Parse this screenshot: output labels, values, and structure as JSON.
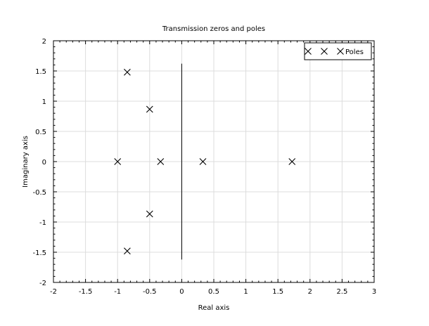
{
  "chart_data": {
    "type": "scatter",
    "title": "Transmission zeros and poles",
    "xlabel": "Real axis",
    "ylabel": "Imaginary axis",
    "xlim": [
      -2,
      3
    ],
    "ylim": [
      -2,
      2
    ],
    "xticks": [
      -2,
      -1.5,
      -1,
      -0.5,
      0,
      0.5,
      1,
      1.5,
      2,
      2.5,
      3
    ],
    "yticks": [
      -2,
      -1.5,
      -1,
      -0.5,
      0,
      0.5,
      1,
      1.5,
      2
    ],
    "xtick_labels": [
      "-2",
      "-1.5",
      "-1",
      "-0.5",
      "0",
      "0.5",
      "1",
      "1.5",
      "2",
      "2.5",
      "3"
    ],
    "ytick_labels": [
      "-2",
      "-1.5",
      "-1",
      "-0.5",
      "0",
      "0.5",
      "1",
      "1.5",
      "2"
    ],
    "grid": true,
    "legend_position": "top-right",
    "series": [
      {
        "name": "Poles",
        "marker": "x",
        "color": "#000000",
        "points": [
          {
            "x": -1.0,
            "y": 0.0
          },
          {
            "x": -0.85,
            "y": 1.48
          },
          {
            "x": -0.85,
            "y": -1.48
          },
          {
            "x": -0.5,
            "y": 0.866
          },
          {
            "x": -0.5,
            "y": -0.866
          },
          {
            "x": -0.33,
            "y": 0.0
          },
          {
            "x": 0.33,
            "y": 0.0
          },
          {
            "x": 1.72,
            "y": 0.0
          }
        ]
      }
    ],
    "reference_lines": [
      {
        "type": "vertical",
        "x": 0,
        "y_from": -1.62,
        "y_to": 1.62,
        "color": "#000000"
      }
    ],
    "colors": {
      "grid": "#dcdcdc",
      "axis": "#000000",
      "background": "#ffffff"
    }
  }
}
